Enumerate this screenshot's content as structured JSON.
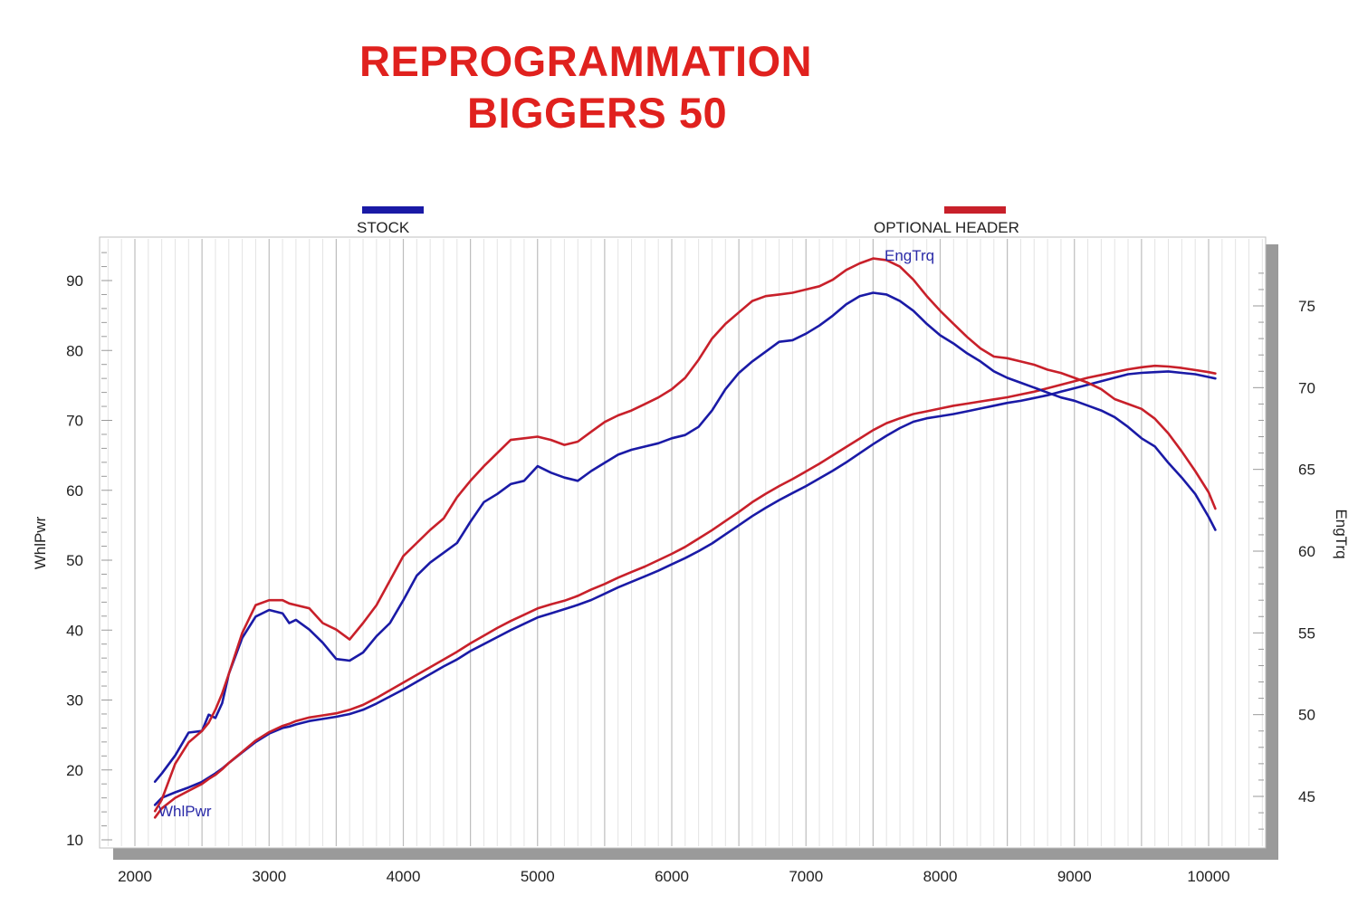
{
  "title": {
    "line1": "REPROGRAMMATION",
    "line2": "BIGGERS 50"
  },
  "colors": {
    "title": "#e0211e",
    "stock": "#1a1aa6",
    "header": "#c8202a",
    "grid": "#c8c8c8",
    "frame": "#9a9a9a"
  },
  "legend": [
    {
      "label": "STOCK",
      "color": "#1a1aa6"
    },
    {
      "label": "OPTIONAL HEADER",
      "color": "#c8202a"
    }
  ],
  "chart_data": {
    "type": "line",
    "xlabel": "",
    "ylabel": "WhlPwr",
    "y2label": "EngTrq",
    "xlim": [
      2000,
      10000
    ],
    "ylim": [
      10,
      95
    ],
    "y2lim": [
      41.9,
      77.2
    ],
    "x_ticks": [
      "2000",
      "3000",
      "4000",
      "5000",
      "6000",
      "7000",
      "8000",
      "9000",
      "10000"
    ],
    "y_ticks": [
      "10",
      "20",
      "30",
      "40",
      "50",
      "60",
      "70",
      "80",
      "90"
    ],
    "y2_ticks": [
      "45",
      "50",
      "55",
      "60",
      "65",
      "70",
      "75"
    ],
    "grid": true,
    "legend_position": "top",
    "curve_labels": {
      "power": "WhlPwr",
      "torque": "EngTrq"
    },
    "series": [
      {
        "name": "STOCK",
        "metric": "WhlPwr",
        "axis": "left",
        "color": "#1a1aa6",
        "x": [
          2150,
          2200,
          2300,
          2400,
          2500,
          2550,
          2600,
          2650,
          2700,
          2800,
          2900,
          3000,
          3100,
          3150,
          3200,
          3300,
          3400,
          3500,
          3600,
          3700,
          3800,
          3900,
          4000,
          4100,
          4200,
          4300,
          4400,
          4500,
          4600,
          4700,
          4800,
          4900,
          5000,
          5100,
          5200,
          5300,
          5400,
          5500,
          5600,
          5700,
          5800,
          5900,
          6000,
          6100,
          6200,
          6300,
          6400,
          6500,
          6600,
          6700,
          6800,
          6900,
          7000,
          7100,
          7200,
          7300,
          7400,
          7500,
          7600,
          7700,
          7800,
          7900,
          8000,
          8100,
          8200,
          8300,
          8400,
          8500,
          8600,
          8700,
          8800,
          8900,
          9000,
          9100,
          9200,
          9300,
          9400,
          9500,
          9600,
          9700,
          9800,
          9900,
          10000,
          10050
        ],
        "y": [
          15,
          16,
          16.8,
          17.5,
          18.3,
          18.9,
          19.5,
          20.2,
          21,
          22.5,
          24,
          25.2,
          26,
          26.2,
          26.5,
          27,
          27.3,
          27.6,
          28,
          28.6,
          29.5,
          30.5,
          31.5,
          32.6,
          33.7,
          34.8,
          35.8,
          37,
          38,
          39,
          40,
          40.9,
          41.8,
          42.4,
          43,
          43.6,
          44.3,
          45.2,
          46.1,
          46.9,
          47.7,
          48.5,
          49.4,
          50.3,
          51.3,
          52.4,
          53.7,
          55,
          56.3,
          57.5,
          58.6,
          59.6,
          60.6,
          61.7,
          62.8,
          64,
          65.3,
          66.6,
          67.8,
          68.9,
          69.8,
          70.3,
          70.6,
          70.9,
          71.3,
          71.7,
          72.1,
          72.5,
          72.8,
          73.2,
          73.6,
          74.1,
          74.6,
          75.1,
          75.6,
          76.1,
          76.6,
          76.8,
          76.9,
          77,
          76.8,
          76.6,
          76.2,
          76
        ]
      },
      {
        "name": "OPTIONAL HEADER",
        "metric": "WhlPwr",
        "axis": "left",
        "color": "#c8202a",
        "x": [
          2150,
          2200,
          2300,
          2400,
          2500,
          2550,
          2600,
          2650,
          2700,
          2800,
          2900,
          3000,
          3100,
          3150,
          3200,
          3300,
          3400,
          3500,
          3600,
          3700,
          3800,
          3900,
          4000,
          4100,
          4200,
          4300,
          4400,
          4500,
          4600,
          4700,
          4800,
          4900,
          5000,
          5100,
          5200,
          5300,
          5400,
          5500,
          5600,
          5700,
          5800,
          5900,
          6000,
          6100,
          6200,
          6300,
          6400,
          6500,
          6600,
          6700,
          6800,
          6900,
          7000,
          7100,
          7200,
          7300,
          7400,
          7500,
          7600,
          7700,
          7800,
          7900,
          8000,
          8100,
          8200,
          8300,
          8400,
          8500,
          8600,
          8700,
          8800,
          8900,
          9000,
          9100,
          9200,
          9300,
          9400,
          9500,
          9600,
          9700,
          9800,
          9900,
          10000,
          10050
        ],
        "y": [
          13.2,
          14.5,
          16,
          17,
          18,
          18.7,
          19.3,
          20.1,
          21,
          22.6,
          24.2,
          25.4,
          26.3,
          26.6,
          27,
          27.5,
          27.8,
          28.1,
          28.6,
          29.3,
          30.3,
          31.4,
          32.5,
          33.6,
          34.7,
          35.8,
          36.9,
          38.1,
          39.2,
          40.3,
          41.3,
          42.2,
          43.1,
          43.7,
          44.2,
          44.9,
          45.8,
          46.6,
          47.5,
          48.3,
          49.1,
          50,
          50.9,
          51.9,
          53.1,
          54.3,
          55.6,
          56.9,
          58.3,
          59.5,
          60.6,
          61.6,
          62.7,
          63.8,
          65,
          66.2,
          67.4,
          68.6,
          69.6,
          70.3,
          70.9,
          71.3,
          71.7,
          72.1,
          72.4,
          72.7,
          73,
          73.3,
          73.7,
          74.1,
          74.6,
          75.1,
          75.6,
          76.1,
          76.5,
          76.9,
          77.3,
          77.6,
          77.8,
          77.7,
          77.5,
          77.2,
          76.9,
          76.7
        ]
      },
      {
        "name": "STOCK",
        "metric": "EngTrq",
        "axis": "right",
        "color": "#1a1aa6",
        "x": [
          2150,
          2200,
          2300,
          2400,
          2500,
          2550,
          2600,
          2650,
          2700,
          2800,
          2900,
          3000,
          3100,
          3150,
          3200,
          3300,
          3400,
          3500,
          3600,
          3700,
          3800,
          3900,
          4000,
          4100,
          4200,
          4300,
          4400,
          4500,
          4600,
          4700,
          4800,
          4900,
          5000,
          5100,
          5200,
          5300,
          5400,
          5500,
          5600,
          5700,
          5800,
          5900,
          6000,
          6100,
          6200,
          6300,
          6400,
          6500,
          6600,
          6700,
          6800,
          6900,
          7000,
          7100,
          7200,
          7300,
          7400,
          7500,
          7600,
          7700,
          7800,
          7900,
          8000,
          8100,
          8200,
          8300,
          8400,
          8500,
          8600,
          8700,
          8800,
          8900,
          9000,
          9100,
          9200,
          9300,
          9400,
          9500,
          9600,
          9700,
          9800,
          9900,
          10000,
          10050
        ],
        "y": [
          45.9,
          46.4,
          47.5,
          48.9,
          49,
          50,
          49.8,
          50.7,
          52.5,
          54.7,
          56,
          56.4,
          56.2,
          55.6,
          55.8,
          55.2,
          54.4,
          53.4,
          53.3,
          53.8,
          54.8,
          55.6,
          57,
          58.5,
          59.3,
          59.9,
          60.5,
          61.8,
          63,
          63.5,
          64.1,
          64.3,
          65.2,
          64.8,
          64.5,
          64.3,
          64.9,
          65.4,
          65.9,
          66.2,
          66.4,
          66.6,
          66.9,
          67.1,
          67.6,
          68.6,
          69.9,
          70.9,
          71.6,
          72.2,
          72.8,
          72.9,
          73.3,
          73.8,
          74.4,
          75.1,
          75.6,
          75.8,
          75.7,
          75.3,
          74.7,
          73.9,
          73.2,
          72.7,
          72.1,
          71.6,
          71,
          70.6,
          70.3,
          70,
          69.7,
          69.4,
          69.2,
          68.9,
          68.6,
          68.2,
          67.6,
          66.9,
          66.4,
          65.4,
          64.5,
          63.5,
          62.1,
          61.3
        ]
      },
      {
        "name": "OPTIONAL HEADER",
        "metric": "EngTrq",
        "axis": "right",
        "color": "#c8202a",
        "x": [
          2150,
          2200,
          2300,
          2400,
          2500,
          2550,
          2600,
          2650,
          2700,
          2800,
          2900,
          3000,
          3100,
          3150,
          3200,
          3300,
          3400,
          3500,
          3600,
          3700,
          3800,
          3900,
          4000,
          4100,
          4200,
          4300,
          4400,
          4500,
          4600,
          4700,
          4800,
          4900,
          5000,
          5100,
          5200,
          5300,
          5400,
          5500,
          5600,
          5700,
          5800,
          5900,
          6000,
          6100,
          6200,
          6300,
          6400,
          6500,
          6600,
          6700,
          6800,
          6900,
          7000,
          7100,
          7200,
          7300,
          7400,
          7500,
          7600,
          7700,
          7800,
          7900,
          8000,
          8100,
          8200,
          8300,
          8400,
          8500,
          8600,
          8700,
          8800,
          8900,
          9000,
          9100,
          9200,
          9300,
          9400,
          9500,
          9600,
          9700,
          9800,
          9900,
          10000,
          10050
        ],
        "y": [
          44.1,
          44.8,
          47,
          48.3,
          49,
          49.5,
          50.3,
          51.3,
          52.5,
          55,
          56.7,
          57,
          57,
          56.8,
          56.7,
          56.5,
          55.6,
          55.2,
          54.6,
          55.6,
          56.7,
          58.2,
          59.7,
          60.5,
          61.3,
          62,
          63.3,
          64.3,
          65.2,
          66,
          66.8,
          66.9,
          67,
          66.8,
          66.5,
          66.7,
          67.3,
          67.9,
          68.3,
          68.6,
          69,
          69.4,
          69.9,
          70.6,
          71.7,
          73,
          73.9,
          74.6,
          75.3,
          75.6,
          75.7,
          75.8,
          76,
          76.2,
          76.6,
          77.2,
          77.6,
          77.9,
          77.8,
          77.4,
          76.6,
          75.6,
          74.7,
          73.9,
          73.1,
          72.4,
          71.9,
          71.8,
          71.6,
          71.4,
          71.1,
          70.9,
          70.6,
          70.3,
          69.9,
          69.3,
          69,
          68.7,
          68.1,
          67.2,
          66.1,
          64.9,
          63.6,
          62.6
        ]
      }
    ]
  }
}
